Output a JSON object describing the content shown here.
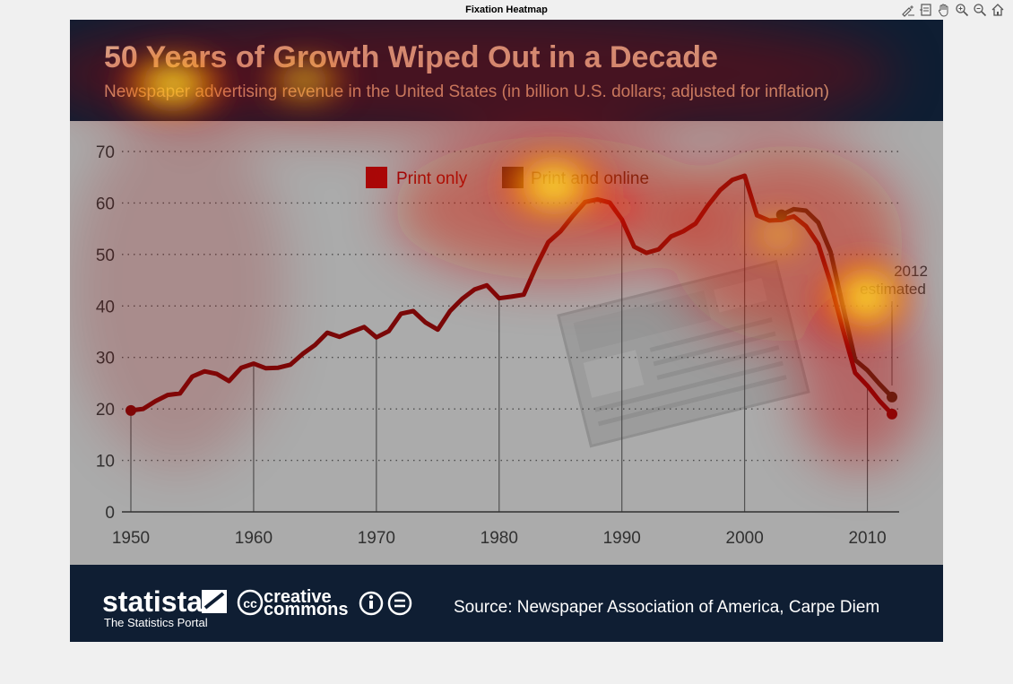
{
  "figure": {
    "title": "Fixation Heatmap"
  },
  "toolbar": {
    "tools": [
      {
        "name": "brush-icon"
      },
      {
        "name": "data-cursor-icon"
      },
      {
        "name": "pan-hand-icon"
      },
      {
        "name": "zoom-in-icon"
      },
      {
        "name": "zoom-out-icon"
      },
      {
        "name": "home-icon"
      }
    ]
  },
  "infographic": {
    "title": "50 Years of Growth Wiped Out in a Decade",
    "subtitle": "Newspaper advertising revenue in the United States (in billion U.S. dollars; adjusted for inflation)",
    "estimate_note_line1": "2012",
    "estimate_note_line2": "estimated",
    "brand": "statista",
    "brand_tagline": "The Statistics Portal",
    "license_top": "creative",
    "license_bottom": "commons",
    "source": "Source: Newspaper Association of America, Carpe Diem",
    "colors": {
      "banner": "#0f1e33",
      "plot_bg": "#c8c8c8",
      "print_only": "#8b0000",
      "print_online": "#4a2a10",
      "title": "#e6c8a0"
    }
  },
  "chart_data": {
    "type": "line",
    "xlim": [
      1950,
      2012
    ],
    "ylim": [
      0,
      70
    ],
    "x_ticks": [
      1950,
      1960,
      1970,
      1980,
      1990,
      2000,
      2010
    ],
    "y_ticks": [
      0,
      10,
      20,
      30,
      40,
      50,
      60,
      70
    ],
    "legend": [
      "Print only",
      "Print and online"
    ],
    "legend_position": "top-center",
    "grid": "horizontal-dotted",
    "series": [
      {
        "name": "Print only",
        "x": [
          1950,
          1951,
          1952,
          1953,
          1954,
          1955,
          1956,
          1957,
          1958,
          1959,
          1960,
          1961,
          1962,
          1963,
          1964,
          1965,
          1966,
          1967,
          1968,
          1969,
          1970,
          1971,
          1972,
          1973,
          1974,
          1975,
          1976,
          1977,
          1978,
          1979,
          1980,
          1981,
          1982,
          1983,
          1984,
          1985,
          1986,
          1987,
          1988,
          1989,
          1990,
          1991,
          1992,
          1993,
          1994,
          1995,
          1996,
          1997,
          1998,
          1999,
          2000,
          2001,
          2002,
          2003,
          2004,
          2005,
          2006,
          2007,
          2008,
          2009,
          2010,
          2011,
          2012
        ],
        "values": [
          19.7,
          20.0,
          21.5,
          22.7,
          23.0,
          26.3,
          27.3,
          26.8,
          25.4,
          28.0,
          28.8,
          27.9,
          28.0,
          28.6,
          30.7,
          32.4,
          34.8,
          34.0,
          35.0,
          35.9,
          33.9,
          35.1,
          38.5,
          39.0,
          36.8,
          35.4,
          39.0,
          41.4,
          43.2,
          44.0,
          41.5,
          41.8,
          42.2,
          47.6,
          52.4,
          54.5,
          57.5,
          60.2,
          60.7,
          60.1,
          56.8,
          51.5,
          50.3,
          51.0,
          53.5,
          54.5,
          56.0,
          59.5,
          62.5,
          64.5,
          65.3,
          57.6,
          56.6,
          56.7,
          57.4,
          55.5,
          52.0,
          44.5,
          35.5,
          27.0,
          24.5,
          21.5,
          19.0
        ]
      },
      {
        "name": "Print and online",
        "x": [
          2003,
          2004,
          2005,
          2006,
          2007,
          2008,
          2009,
          2010,
          2011,
          2012
        ],
        "values": [
          57.7,
          58.8,
          58.5,
          56.2,
          50.5,
          40.0,
          29.5,
          27.5,
          24.8,
          22.3
        ]
      }
    ],
    "markers": [
      {
        "x": 1950,
        "y": 19.7,
        "series": "Print only"
      },
      {
        "x": 2003,
        "y": 57.7,
        "series": "Print and online"
      },
      {
        "x": 2012,
        "y": 22.3,
        "series": "Print and online"
      },
      {
        "x": 2012,
        "y": 19.0,
        "series": "Print only"
      }
    ],
    "drop_lines_x": [
      1950,
      1960,
      1970,
      1980,
      1990,
      2000,
      2010
    ]
  }
}
